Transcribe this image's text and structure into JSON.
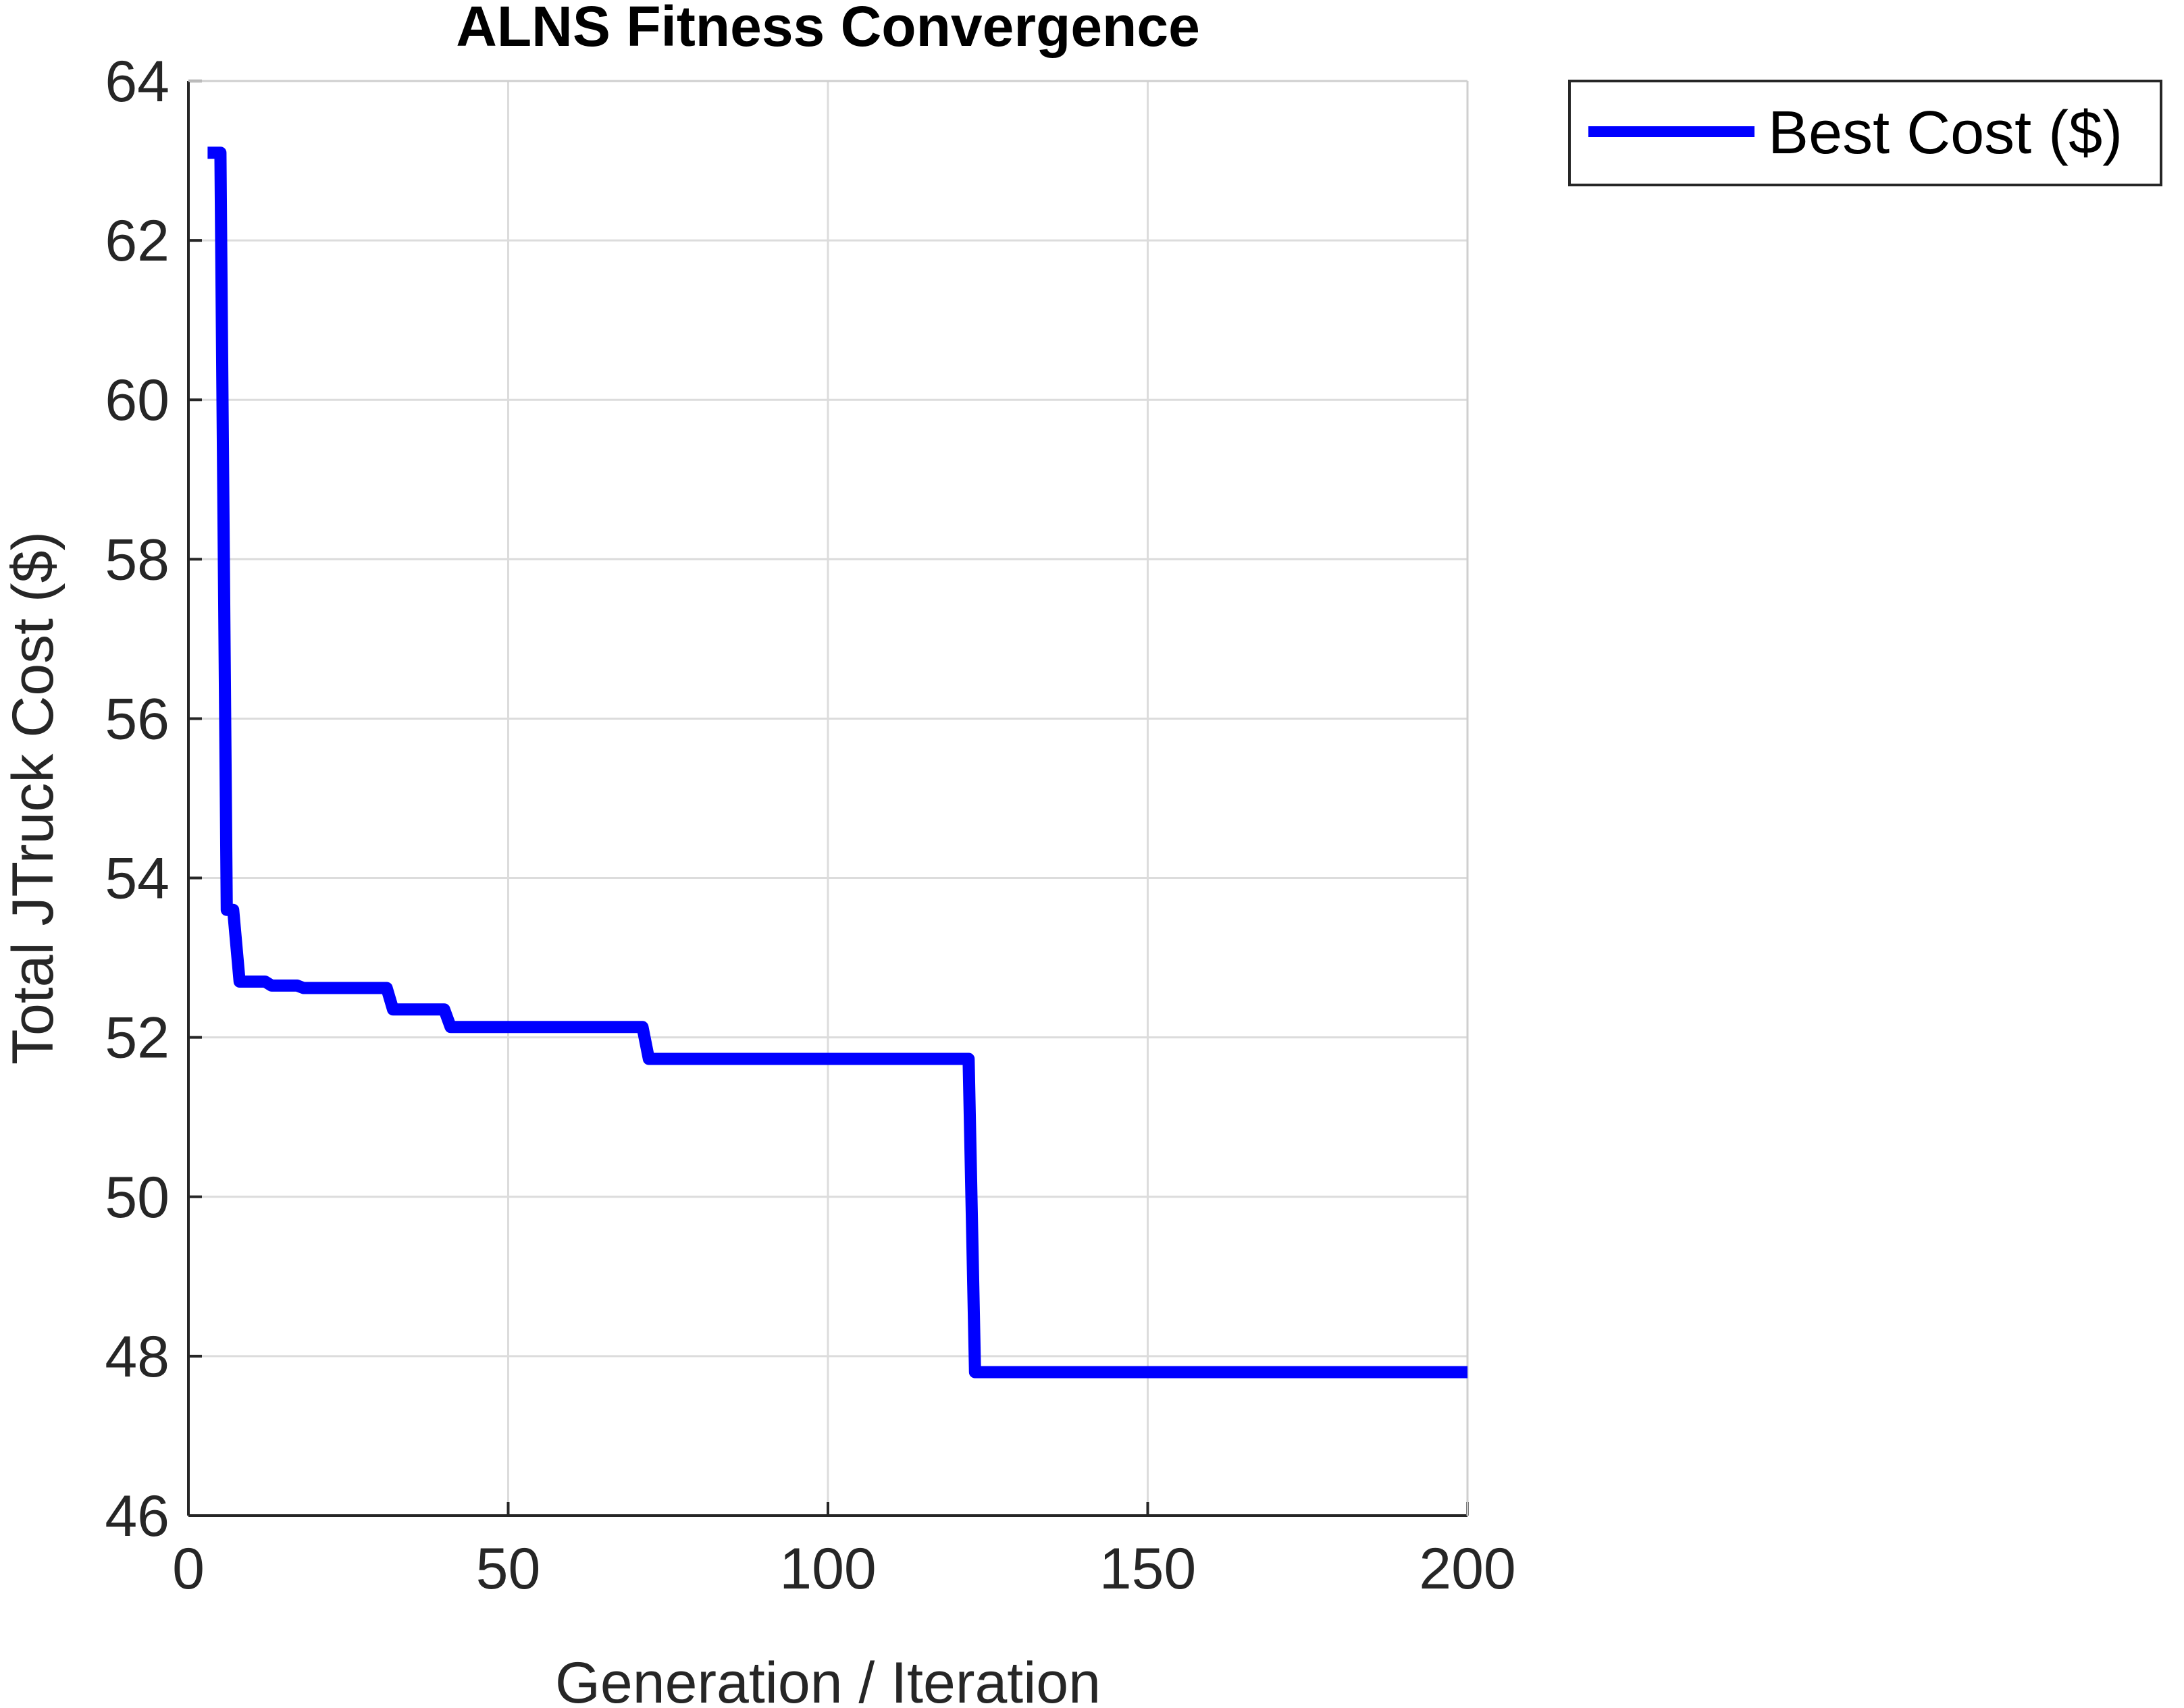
{
  "chart_data": {
    "type": "line",
    "title": "ALNS Fitness Convergence",
    "xlabel": "Generation / Iteration",
    "ylabel": "Total JTruck Cost ($)",
    "xlim": [
      0,
      200
    ],
    "ylim": [
      46,
      64
    ],
    "xticks": [
      "0",
      "50",
      "100",
      "150",
      "200"
    ],
    "yticks": [
      "46",
      "48",
      "50",
      "52",
      "54",
      "56",
      "58",
      "60",
      "62",
      "64"
    ],
    "grid": true,
    "legend_position": "outside top-right",
    "series": [
      {
        "name": "Best Cost ($)",
        "color": "#0000ff",
        "step": true,
        "points": [
          [
            3,
            63.1
          ],
          [
            5,
            63.1
          ],
          [
            6,
            53.6
          ],
          [
            7,
            53.6
          ],
          [
            8,
            52.7
          ],
          [
            12,
            52.7
          ],
          [
            13,
            52.65
          ],
          [
            17,
            52.65
          ],
          [
            18,
            52.62
          ],
          [
            31,
            52.62
          ],
          [
            32,
            52.35
          ],
          [
            40,
            52.35
          ],
          [
            41,
            52.13
          ],
          [
            71,
            52.13
          ],
          [
            72,
            51.73
          ],
          [
            122,
            51.73
          ],
          [
            123,
            47.8
          ],
          [
            200,
            47.8
          ]
        ]
      }
    ]
  }
}
